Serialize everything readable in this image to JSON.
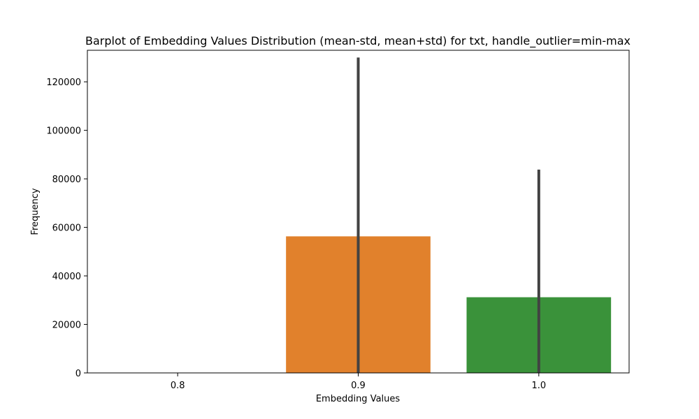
{
  "chart_data": {
    "type": "bar",
    "title": "Barplot of Embedding Values Distribution (mean-std, mean+std) for txt, handle_outlier=min-max",
    "xlabel": "Embedding Values",
    "ylabel": "Frequency",
    "categories": [
      "0.8",
      "0.9",
      "1.0"
    ],
    "values": [
      0,
      56300,
      31200
    ],
    "error_bars": [
      [
        0,
        0
      ],
      [
        0,
        130000
      ],
      [
        0,
        83800
      ]
    ],
    "colors": [
      "#3a75b0",
      "#e1812c",
      "#3a923a"
    ],
    "error_color": "#424242",
    "ylim": [
      0,
      133000
    ],
    "yticks": [
      0,
      20000,
      40000,
      60000,
      80000,
      100000,
      120000
    ],
    "grid": false,
    "legend": "none"
  }
}
